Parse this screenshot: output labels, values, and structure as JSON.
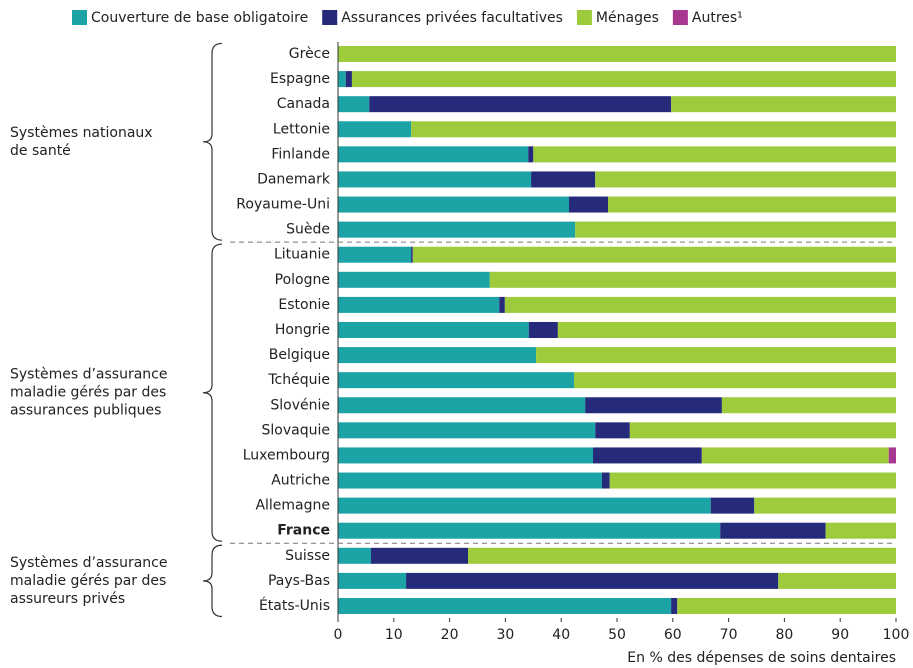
{
  "chart_data": {
    "type": "stacked_barh",
    "categories": [
      "Grèce",
      "Espagne",
      "Canada",
      "Lettonie",
      "Finlande",
      "Danemark",
      "Royaume-Uni",
      "Suède",
      "Lituanie",
      "Pologne",
      "Estonie",
      "Hongrie",
      "Belgique",
      "Tchéquie",
      "Slovénie",
      "Slovaquie",
      "Luxembourg",
      "Autriche",
      "Allemagne",
      "France",
      "Suisse",
      "Pays-Bas",
      "États-Unis"
    ],
    "emphasis": "France",
    "groups": [
      {
        "label": [
          "Systèmes nationaux",
          "de santé"
        ],
        "count": 8
      },
      {
        "label": [
          "Systèmes d’assurance",
          "maladie gérés par des",
          "assurances publiques"
        ],
        "count": 12
      },
      {
        "label": [
          "Systèmes d’assurance",
          "maladie gérés par des",
          "assureurs privés"
        ],
        "count": 3
      }
    ],
    "series": [
      {
        "name": "Couverture de base obligatoire",
        "color": "#1ba3a6",
        "values": [
          0,
          1.4,
          5.6,
          13.1,
          34.1,
          34.6,
          41.4,
          42.5,
          13.1,
          27.2,
          28.9,
          34.2,
          35.5,
          42.3,
          44.3,
          46.1,
          45.7,
          47.3,
          66.8,
          68.5,
          5.9,
          12.2,
          59.7
        ]
      },
      {
        "name": "Assurances privées facultatives",
        "color": "#262a7a",
        "values": [
          0,
          1.1,
          54.1,
          0,
          0.9,
          11.5,
          7.0,
          0,
          0.3,
          0,
          1.0,
          5.2,
          0,
          0,
          24.5,
          6.2,
          19.5,
          1.4,
          7.8,
          18.9,
          17.4,
          66.7,
          1.1
        ]
      },
      {
        "name": "Ménages",
        "color": "#9dcb3c",
        "values": [
          100,
          97.5,
          40.3,
          86.9,
          65.0,
          53.9,
          51.6,
          57.5,
          86.6,
          72.8,
          70.1,
          60.6,
          64.5,
          57.7,
          31.2,
          47.7,
          33.5,
          51.3,
          25.4,
          12.6,
          76.7,
          21.1,
          39.2
        ]
      },
      {
        "name": "Autres¹",
        "color": "#a8388f",
        "values": [
          0,
          0,
          0,
          0,
          0,
          0,
          0,
          0,
          0,
          0,
          0,
          0,
          0,
          0,
          0,
          0,
          1.3,
          0,
          0,
          0,
          0,
          0,
          0
        ]
      }
    ],
    "xlim": [
      0,
      100
    ],
    "xticks": [
      0,
      10,
      20,
      30,
      40,
      50,
      60,
      70,
      80,
      90,
      100
    ],
    "xlabel": "En % des dépenses de soins dentaires"
  }
}
